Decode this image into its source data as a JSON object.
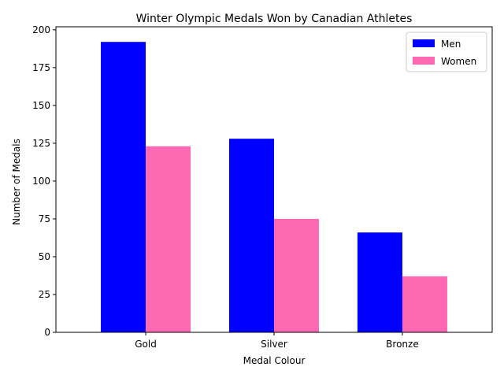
{
  "chart_data": {
    "type": "bar",
    "title": "Winter Olympic Medals Won by Canadian Athletes",
    "xlabel": "Medal Colour",
    "ylabel": "Number of Medals",
    "categories": [
      "Gold",
      "Silver",
      "Bronze"
    ],
    "series": [
      {
        "name": "Men",
        "values": [
          192,
          128,
          66
        ],
        "color": "#0000ff"
      },
      {
        "name": "Women",
        "values": [
          123,
          75,
          37
        ],
        "color": "#ff69b4"
      }
    ],
    "ylim": [
      0,
      202
    ],
    "yticks": [
      0,
      25,
      50,
      75,
      100,
      125,
      150,
      175,
      200
    ],
    "grid": false,
    "legend_position": "top-right"
  }
}
